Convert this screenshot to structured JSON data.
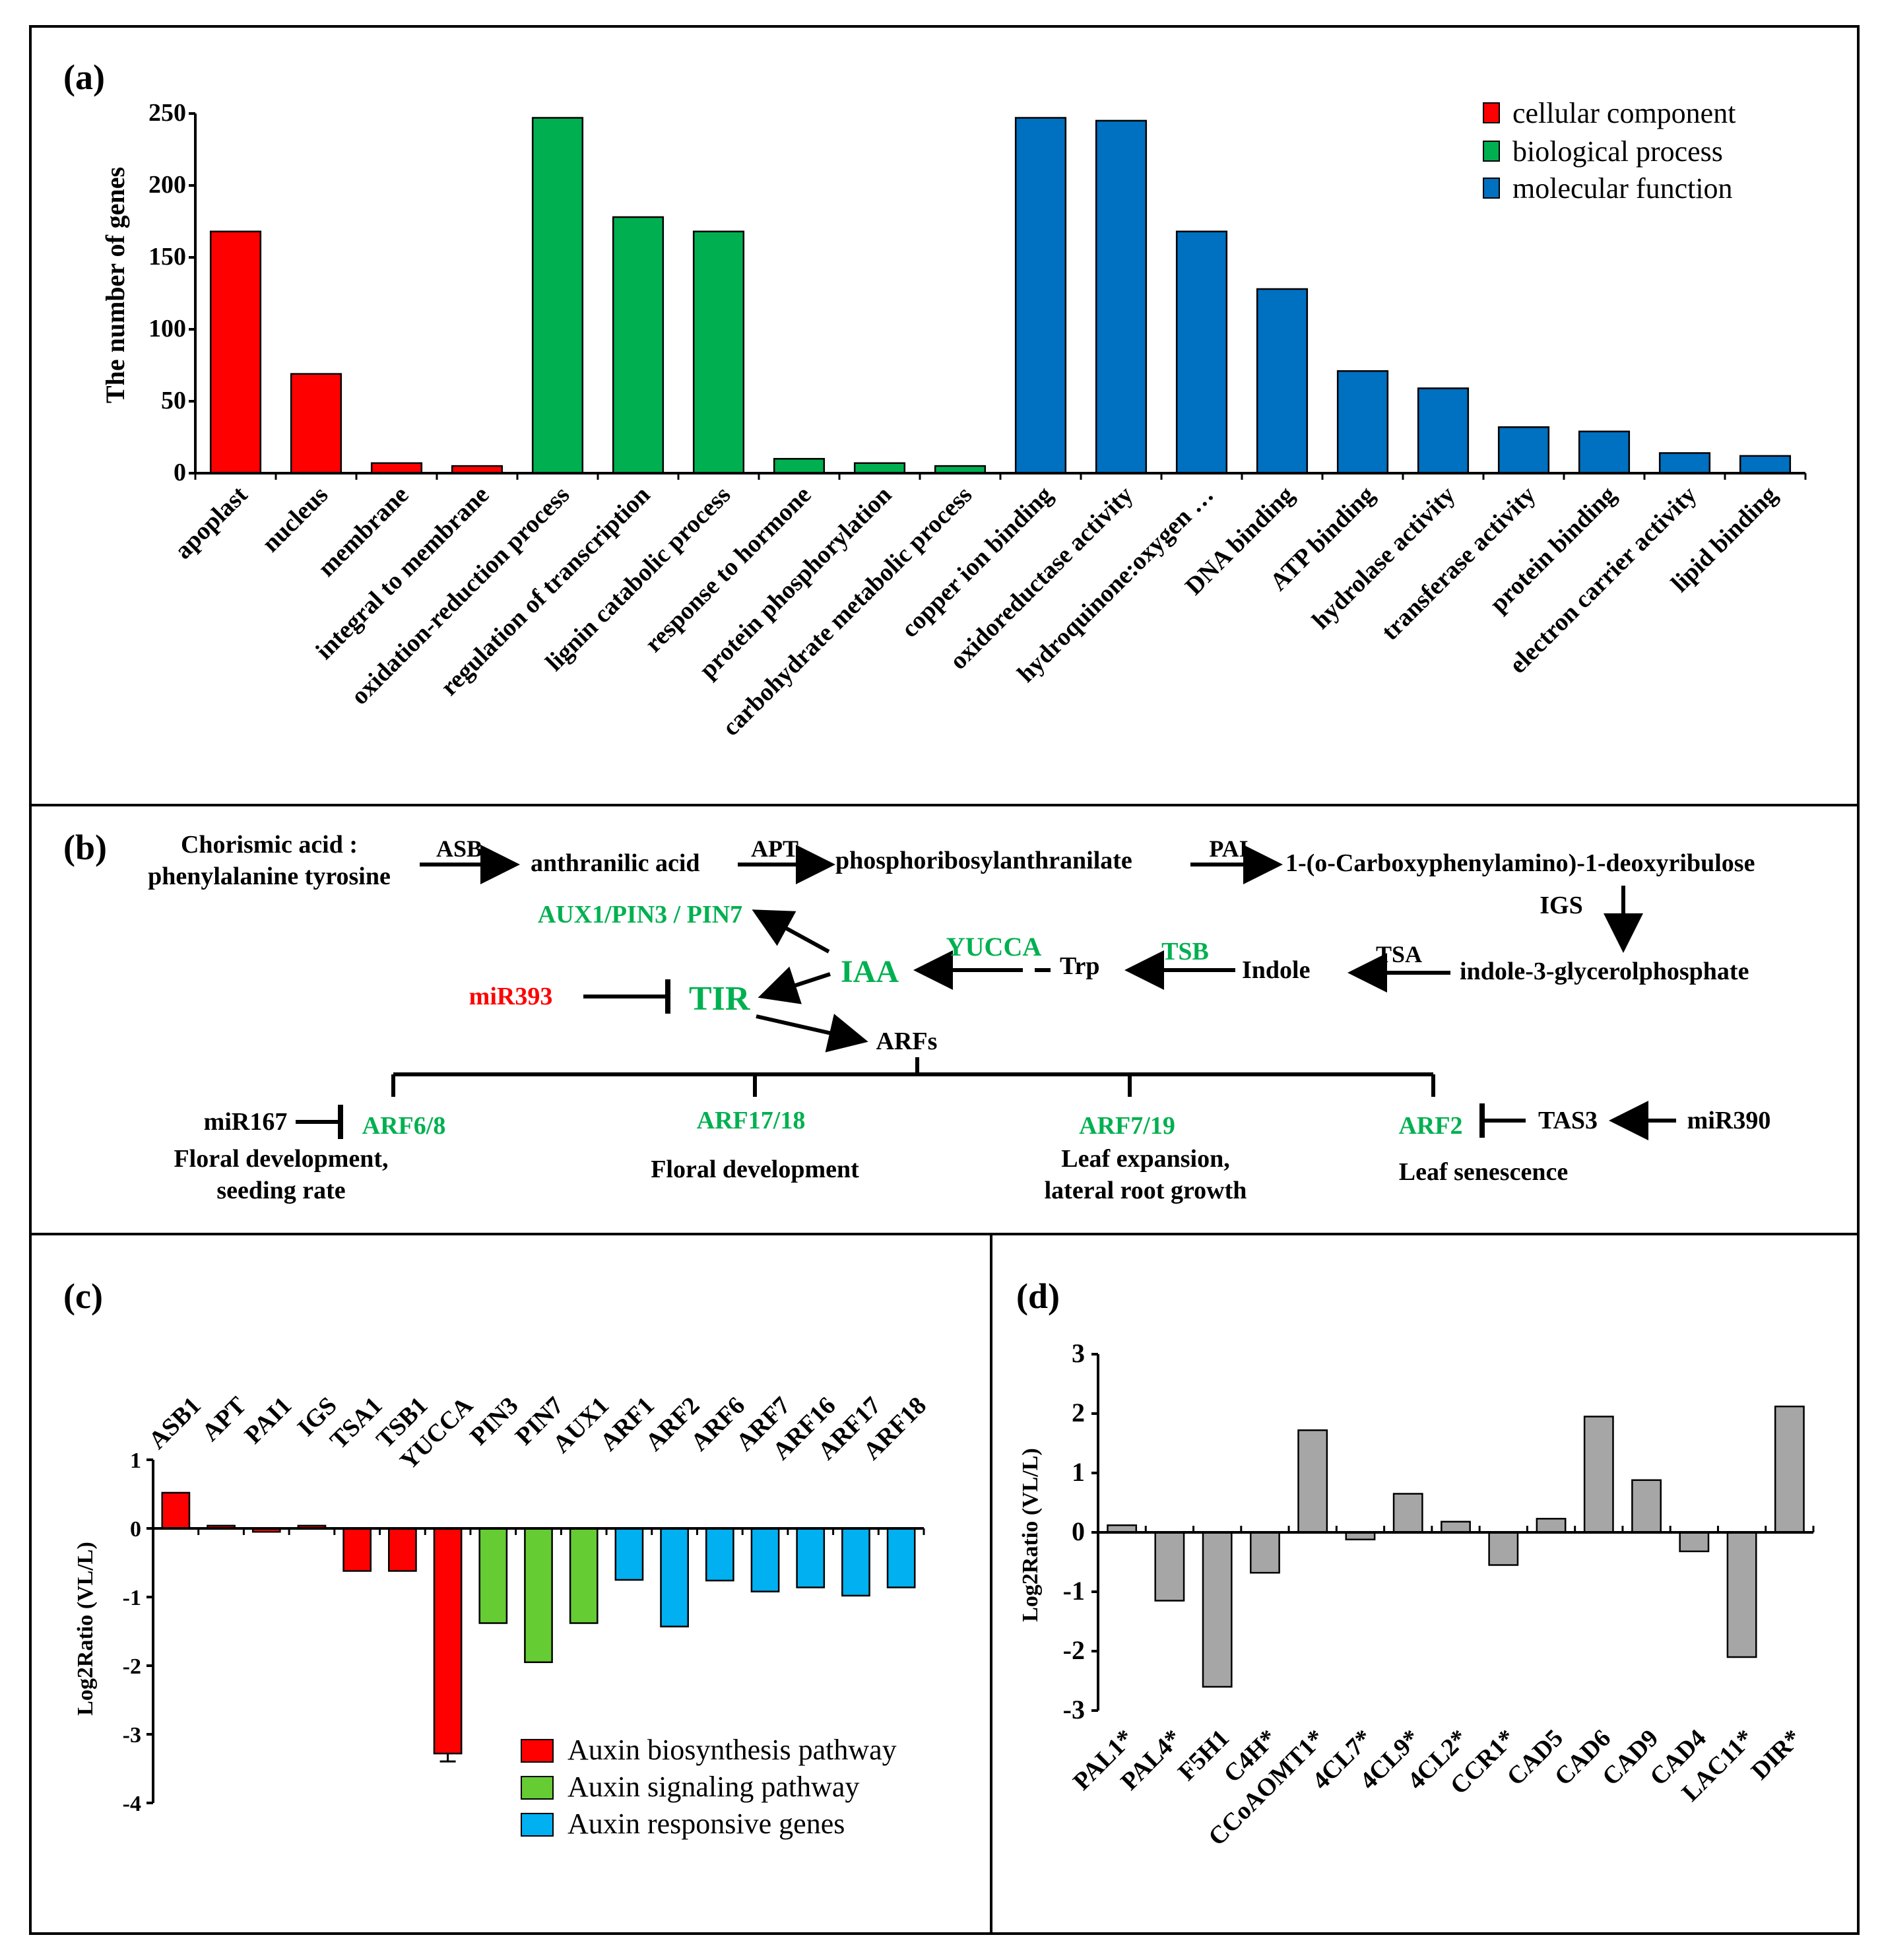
{
  "colors": {
    "red": "#ff0000",
    "green": "#00b050",
    "blue": "#0070c0",
    "light_green": "#66cc33",
    "light_blue": "#00b0f0",
    "gray": "#a6a6a6",
    "pathway_green": "#00b050",
    "pathway_red": "#ff0000"
  },
  "panels": {
    "a": {
      "label": "(a)"
    },
    "b": {
      "label": "(b)"
    },
    "c": {
      "label": "(c)"
    },
    "d": {
      "label": "(d)"
    }
  },
  "chart_data": [
    {
      "id": "a",
      "type": "bar",
      "ylabel": "The number of genes",
      "ylim": [
        0,
        250
      ],
      "yticks": [
        "0",
        "50",
        "100",
        "150",
        "200",
        "250"
      ],
      "categories": [
        "apoplast",
        "nucleus",
        "membrane",
        "integral to membrane",
        "oxidation-reduction process",
        "regulation of transcription",
        "lignin catabolic process",
        "response to hormone",
        "protein phosphorylation",
        "carbohydrate metabolic process",
        "copper ion binding",
        "oxidoreductase activity",
        "hydroquinone:oxygen …",
        "DNA binding",
        "ATP binding",
        "hydrolase activity",
        "transferase activity",
        "protein binding",
        "electron carrier activity",
        "lipid binding"
      ],
      "values": [
        168,
        69,
        7,
        5,
        247,
        178,
        168,
        10,
        7,
        5,
        247,
        245,
        168,
        128,
        71,
        59,
        32,
        29,
        14,
        12
      ],
      "groups": [
        "cc",
        "cc",
        "cc",
        "cc",
        "bp",
        "bp",
        "bp",
        "bp",
        "bp",
        "bp",
        "mf",
        "mf",
        "mf",
        "mf",
        "mf",
        "mf",
        "mf",
        "mf",
        "mf",
        "mf"
      ],
      "legend": [
        {
          "key": "cc",
          "label": "cellular component",
          "color": "#ff0000"
        },
        {
          "key": "bp",
          "label": "biological process",
          "color": "#00b050"
        },
        {
          "key": "mf",
          "label": "molecular function",
          "color": "#0070c0"
        }
      ],
      "legend_position": "top-right"
    },
    {
      "id": "c",
      "type": "bar",
      "ylabel": "Log2Ratio (VL/L)",
      "ylim": [
        -4,
        1
      ],
      "yticks": [
        "1",
        "0",
        "-1",
        "-2",
        "-3",
        "-4"
      ],
      "categories": [
        "ASB1",
        "APT",
        "PAI1",
        "IGS",
        "TSA1",
        "TSB1",
        "YUCCA",
        "PIN3",
        "PIN7",
        "AUX1",
        "ARF1",
        "ARF2",
        "ARF6",
        "ARF7",
        "ARF16",
        "ARF17",
        "ARF18"
      ],
      "values": [
        0.52,
        0.04,
        -0.05,
        0.04,
        -0.62,
        -0.62,
        -3.28,
        -1.38,
        -1.95,
        -1.38,
        -0.75,
        -1.43,
        -0.76,
        -0.92,
        -0.86,
        -0.98,
        -0.86
      ],
      "groups": [
        "bio",
        "bio",
        "bio",
        "bio",
        "bio",
        "bio",
        "bio",
        "sig",
        "sig",
        "sig",
        "resp",
        "resp",
        "resp",
        "resp",
        "resp",
        "resp",
        "resp"
      ],
      "legend": [
        {
          "key": "bio",
          "label": "Auxin biosynthesis pathway",
          "color": "#ff0000"
        },
        {
          "key": "sig",
          "label": "Auxin signaling pathway",
          "color": "#66cc33"
        },
        {
          "key": "resp",
          "label": "Auxin responsive genes",
          "color": "#00b0f0"
        }
      ],
      "legend_position": "bottom-right"
    },
    {
      "id": "d",
      "type": "bar",
      "ylabel": "Log2Ratio (VL/L)",
      "ylim": [
        -3,
        3
      ],
      "yticks": [
        "3",
        "2",
        "1",
        "0",
        "-1",
        "-2",
        "-3"
      ],
      "categories": [
        "PAL1*",
        "PAL4*",
        "F5H1",
        "C4H*",
        "CCoAOMT1*",
        "4CL7*",
        "4CL9*",
        "4CL2*",
        "CCR1*",
        "CAD5",
        "CAD6",
        "CAD9",
        "CAD4",
        "LAC11*",
        "DIR*"
      ],
      "values": [
        0.12,
        -1.15,
        -2.6,
        -0.68,
        1.72,
        -0.12,
        0.65,
        0.18,
        -0.55,
        0.23,
        1.95,
        0.88,
        -0.32,
        -2.1,
        2.12
      ],
      "color": "#a6a6a6"
    }
  ],
  "pathway": {
    "chorismic_line1": "Chorismic acid :",
    "chorismic_line2": "phenylalanine tyrosine",
    "asb": "ASB",
    "anthranilic": "anthranilic acid",
    "apt": "APT",
    "phosphoribosyl": "phosphoribosylanthranilate",
    "pai": "PAI",
    "carboxy": "1-(o-Carboxyphenylamino)-1-deoxyribulose",
    "igs": "IGS",
    "igp": "indole-3-glycerolphosphate",
    "tsa": "TSA",
    "indole": "Indole",
    "tsb": "TSB",
    "trp": "Trp",
    "yucca": "YUCCA",
    "iaa": "IAA",
    "aux": "AUX1/PIN3 / PIN7",
    "mir393": "miR393",
    "tir": "TIR",
    "arfs": "ARFs",
    "mir167": "miR167",
    "arf68": "ARF6/8",
    "arf68_desc1": "Floral development,",
    "arf68_desc2": "seeding rate",
    "arf1718": "ARF17/18",
    "arf1718_desc": "Floral development",
    "arf719": "ARF7/19",
    "arf719_desc1": "Leaf expansion,",
    "arf719_desc2": "lateral root growth",
    "arf2": "ARF2",
    "arf2_desc": "Leaf senescence",
    "tas3": "TAS3",
    "mir390": "miR390"
  }
}
